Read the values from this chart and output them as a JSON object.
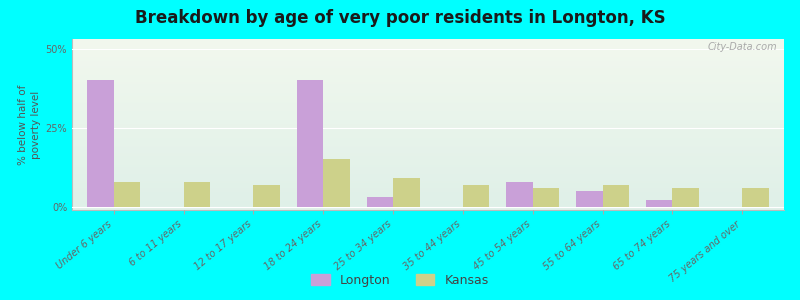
{
  "title": "Breakdown by age of very poor residents in Longton, KS",
  "ylabel": "% below half of\npoverty level",
  "categories": [
    "Under 6 years",
    "6 to 11 years",
    "12 to 17 years",
    "18 to 24 years",
    "25 to 34 years",
    "35 to 44 years",
    "45 to 54 years",
    "55 to 64 years",
    "65 to 74 years",
    "75 years and over"
  ],
  "longton_values": [
    40,
    0,
    0,
    40,
    3,
    0,
    8,
    5,
    2,
    0
  ],
  "kansas_values": [
    8,
    8,
    7,
    15,
    9,
    7,
    6,
    7,
    6,
    6
  ],
  "longton_color": "#c9a0d8",
  "kansas_color": "#cdd18a",
  "background_color": "#00ffff",
  "plot_bg_top": "#f2f8ee",
  "plot_bg_bottom": "#dff0e8",
  "yticks": [
    0,
    25,
    50
  ],
  "ylim": [
    -1,
    53
  ],
  "bar_width": 0.38,
  "title_fontsize": 12,
  "axis_label_fontsize": 7.5,
  "tick_fontsize": 7,
  "legend_fontsize": 9,
  "watermark": "City-Data.com"
}
